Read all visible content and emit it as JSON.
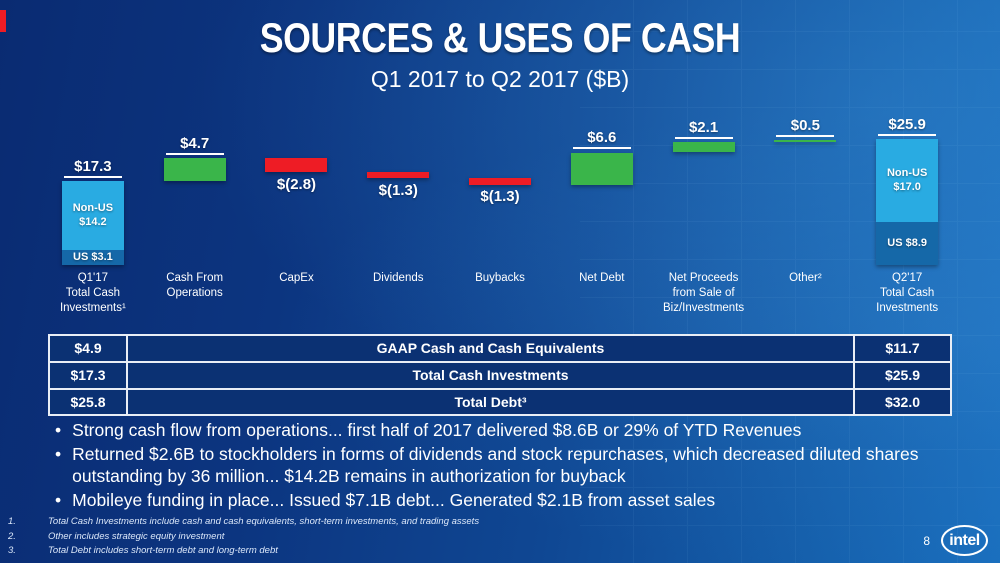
{
  "slide": {
    "title": "SOURCES & USES OF CASH",
    "subtitle": "Q1 2017 to Q2 2017 ($B)",
    "page_number": "8",
    "logo_text": "intel"
  },
  "chart_data": {
    "type": "bar",
    "subtype": "waterfall",
    "title": "Sources & Uses of Cash",
    "subtitle": "Q1 2017 to Q2 2017 ($B)",
    "unit": "$B",
    "ylim": [
      0,
      27
    ],
    "grid": false,
    "colors": {
      "increase": "#3AB54A",
      "decrease": "#EE1C25",
      "total_light": "#29ABE2",
      "total_dark": "#1568A8"
    },
    "bars": [
      {
        "category": "Q1'17\nTotal Cash\nInvestments¹",
        "value": 17.3,
        "value_label": "$17.3",
        "kind": "total",
        "segments": [
          {
            "label": "Non-US\n$14.2",
            "value": 14.2,
            "color": "#29ABE2"
          },
          {
            "label": "US $3.1",
            "value": 3.1,
            "color": "#1568A8"
          }
        ]
      },
      {
        "category": "Cash From\nOperations",
        "value": 4.7,
        "value_label": "$4.7",
        "kind": "increase"
      },
      {
        "category": "CapEx",
        "value": -2.8,
        "value_label": "$(2.8)",
        "kind": "decrease"
      },
      {
        "category": "Dividends",
        "value": -1.3,
        "value_label": "$(1.3)",
        "kind": "decrease"
      },
      {
        "category": "Buybacks",
        "value": -1.3,
        "value_label": "$(1.3)",
        "kind": "decrease"
      },
      {
        "category": "Net Debt",
        "value": 6.6,
        "value_label": "$6.6",
        "kind": "increase"
      },
      {
        "category": "Net Proceeds\nfrom Sale of\nBiz/Investments",
        "value": 2.1,
        "value_label": "$2.1",
        "kind": "increase"
      },
      {
        "category": "Other²",
        "value": 0.5,
        "value_label": "$0.5",
        "kind": "increase"
      },
      {
        "category": "Q2'17\nTotal Cash\nInvestments",
        "value": 25.9,
        "value_label": "$25.9",
        "kind": "total",
        "segments": [
          {
            "label": "Non-US\n$17.0",
            "value": 17.0,
            "color": "#29ABE2"
          },
          {
            "label": "US $8.9",
            "value": 8.9,
            "color": "#1568A8"
          }
        ]
      }
    ]
  },
  "table": {
    "rows": [
      {
        "left": "$4.9",
        "center": "GAAP Cash and Cash Equivalents",
        "right": "$11.7"
      },
      {
        "left": "$17.3",
        "center": "Total Cash Investments",
        "right": "$25.9"
      },
      {
        "left": "$25.8",
        "center": "Total Debt³",
        "right": "$32.0"
      }
    ]
  },
  "bullets": [
    "Strong cash flow from operations... first half of 2017 delivered $8.6B or 29% of YTD Revenues",
    "Returned $2.6B to stockholders in forms of dividends and stock repurchases, which decreased diluted shares outstanding by 36 million... $14.2B remains in authorization for buyback",
    "Mobileye funding in place... Issued $7.1B debt... Generated $2.1B from asset sales"
  ],
  "footnotes": [
    {
      "num": "1.",
      "text": "Total Cash Investments include cash and cash equivalents, short-term investments, and trading assets"
    },
    {
      "num": "2.",
      "text": "Other includes strategic equity investment"
    },
    {
      "num": "3.",
      "text": "Total Debt includes short-term debt and long-term debt"
    }
  ]
}
